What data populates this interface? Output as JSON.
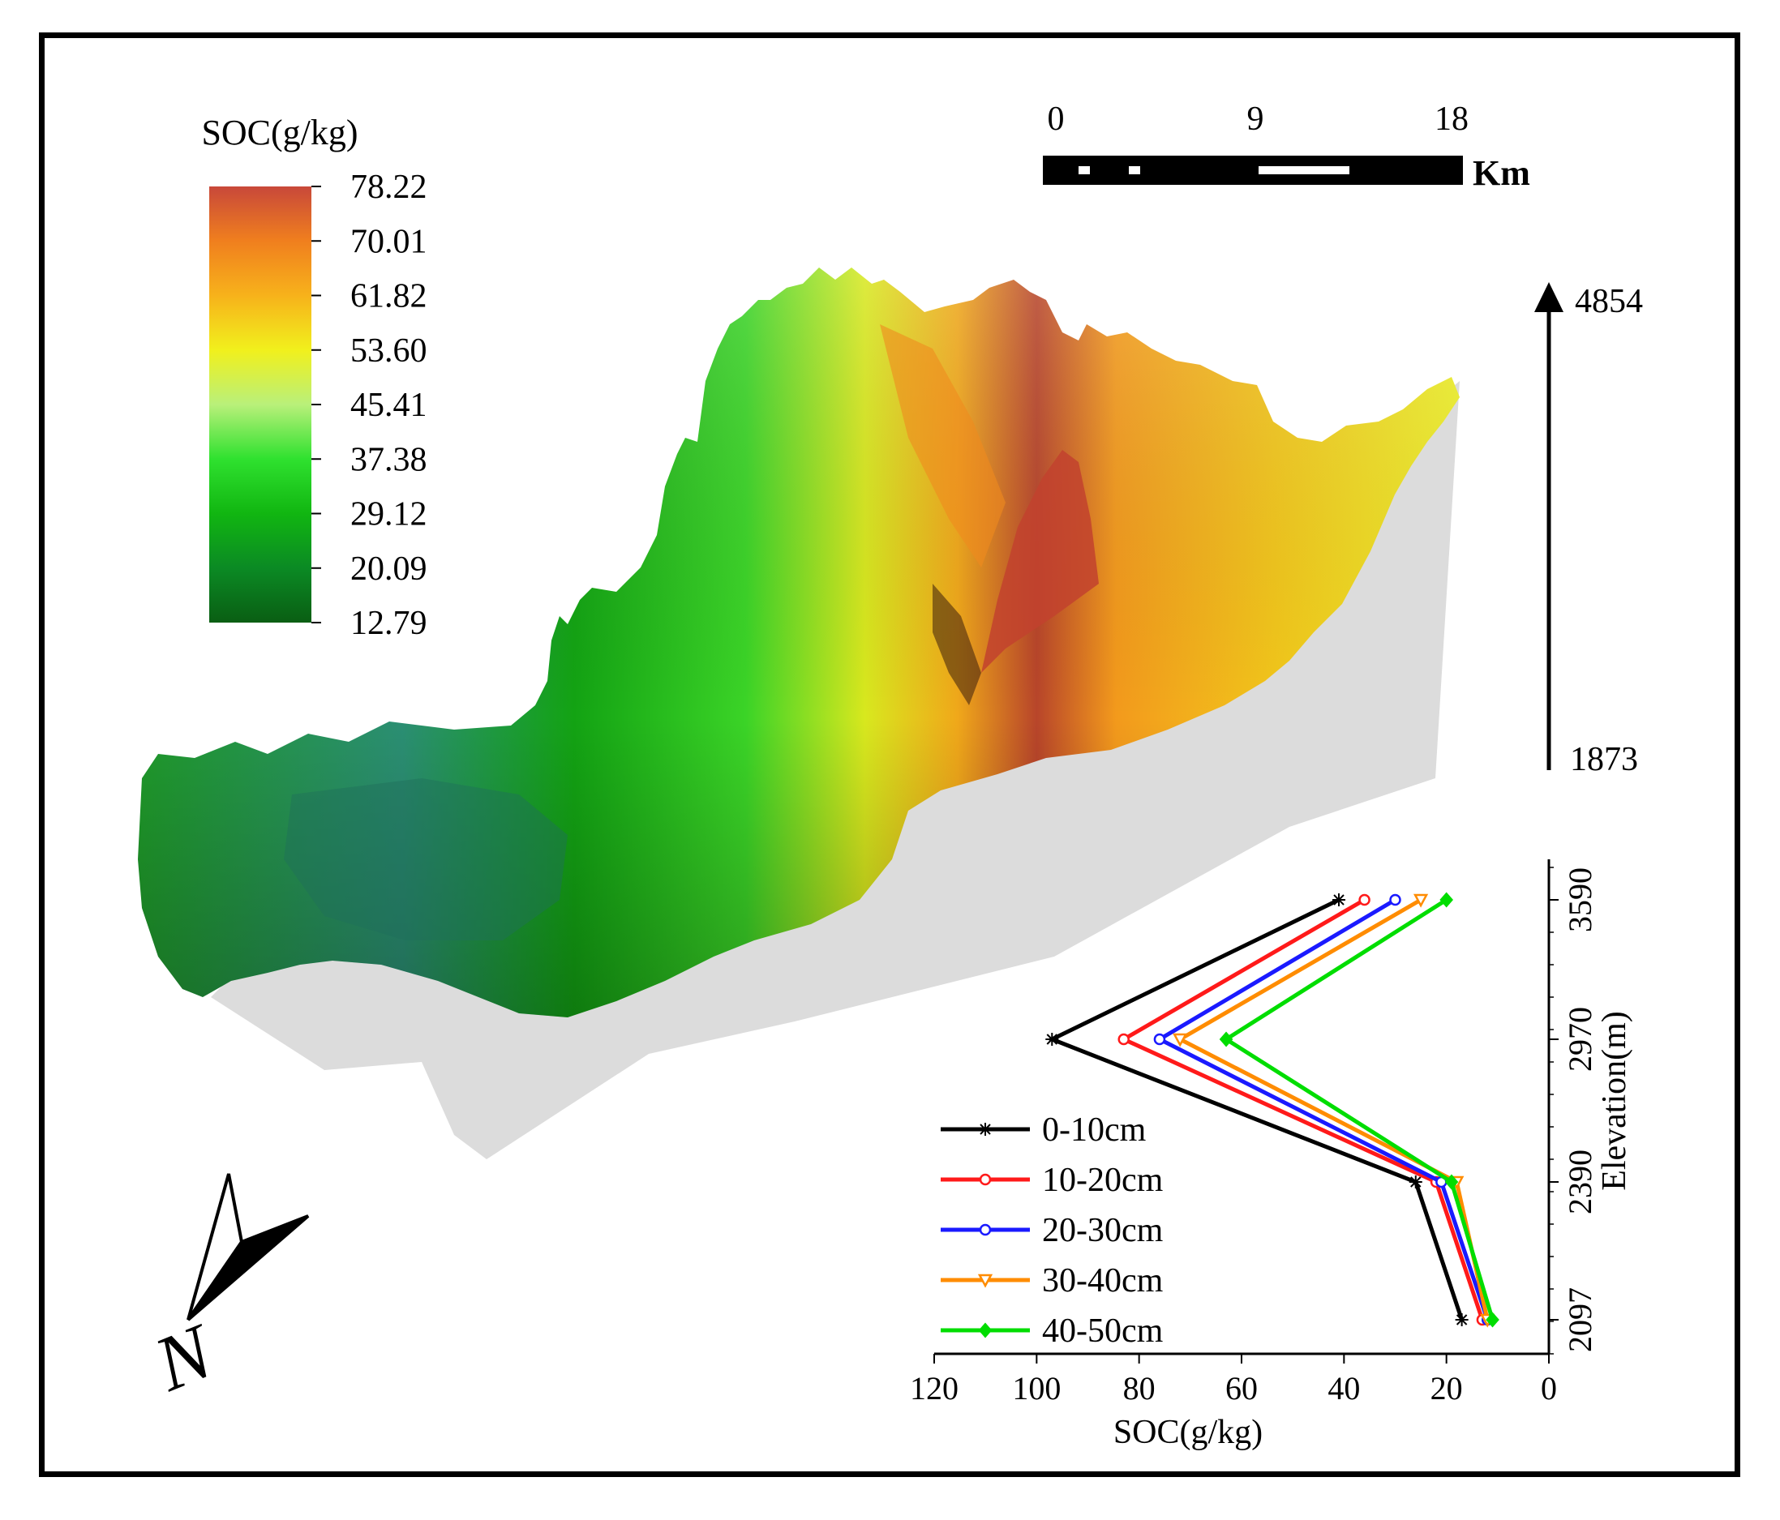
{
  "legend": {
    "title": "SOC(g/kg)",
    "ticks": [
      "78.22",
      "70.01",
      "61.82",
      "53.60",
      "45.41",
      "37.38",
      "29.12",
      "20.09",
      "12.79"
    ],
    "colors": [
      "#c8483a",
      "#f07f1e",
      "#f7b21b",
      "#f1f01c",
      "#b9f07a",
      "#2fe12f",
      "#11b611",
      "#0b8a24",
      "#0a5e13"
    ]
  },
  "scale_bar": {
    "labels": [
      "0",
      "9",
      "18"
    ],
    "unit": "Km"
  },
  "elevation_arrow": {
    "max_label": "4854",
    "min_label": "1873"
  },
  "north_arrow": {
    "label": "N"
  },
  "chart_data": {
    "type": "line",
    "title": "",
    "xlabel": "SOC(g/kg)",
    "ylabel": "Elevation(m)",
    "xlim": [
      120,
      0
    ],
    "x_ticks": [
      "120",
      "100",
      "80",
      "60",
      "40",
      "20",
      "0"
    ],
    "y_categories": [
      "2097",
      "2390",
      "2970",
      "3590"
    ],
    "series": [
      {
        "name": "0-10cm",
        "color": "#000000",
        "marker": "*",
        "values": [
          17,
          26,
          97,
          41
        ]
      },
      {
        "name": "10-20cm",
        "color": "#ff1a1a",
        "marker": "o",
        "values": [
          13,
          22,
          83,
          36
        ]
      },
      {
        "name": "20-30cm",
        "color": "#1a1aff",
        "marker": "o",
        "values": [
          12,
          21,
          76,
          30
        ]
      },
      {
        "name": "30-40cm",
        "color": "#ff8c00",
        "marker": "v",
        "values": [
          12,
          18,
          72,
          25
        ]
      },
      {
        "name": "40-50cm",
        "color": "#00dd00",
        "marker": "D",
        "values": [
          11,
          19,
          63,
          20
        ]
      }
    ]
  }
}
